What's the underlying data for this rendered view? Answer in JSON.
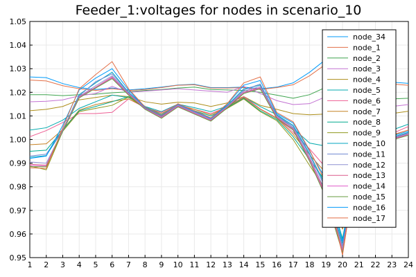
{
  "chart_data": {
    "type": "line",
    "title": "Feeder_1:voltages for nodes in scenario_10",
    "xlabel": "",
    "ylabel": "",
    "xlim": [
      1,
      24
    ],
    "ylim": [
      0.95,
      1.05
    ],
    "x": [
      1,
      2,
      3,
      4,
      5,
      6,
      7,
      8,
      9,
      10,
      11,
      12,
      13,
      14,
      15,
      16,
      17,
      18,
      19,
      20,
      21,
      22,
      23,
      24
    ],
    "xticks": [
      "1",
      "2",
      "3",
      "4",
      "5",
      "6",
      "7",
      "8",
      "9",
      "10",
      "11",
      "12",
      "13",
      "14",
      "15",
      "16",
      "17",
      "18",
      "19",
      "20",
      "21",
      "22",
      "23",
      "24"
    ],
    "yticks": [
      "0.95",
      "0.96",
      "0.97",
      "0.98",
      "0.99",
      "1.00",
      "1.01",
      "1.02",
      "1.03",
      "1.04",
      "1.05"
    ],
    "legend_position": "top-right",
    "grid": true,
    "series": [
      {
        "name": "node_34",
        "color": "#009AFA",
        "values": [
          1.0265,
          1.0262,
          1.0237,
          1.022,
          1.0212,
          1.0218,
          1.021,
          1.0215,
          1.0222,
          1.0231,
          1.0234,
          1.022,
          1.022,
          1.0222,
          1.0215,
          1.0222,
          1.024,
          1.0285,
          1.034,
          1.0278,
          1.0262,
          1.025,
          1.0243,
          1.0238
        ]
      },
      {
        "name": "node_1",
        "color": "#E36F47",
        "values": [
          1.0252,
          1.0248,
          1.0228,
          1.0215,
          1.0208,
          1.0215,
          1.0208,
          1.0212,
          1.022,
          1.023,
          1.0232,
          1.0218,
          1.0218,
          1.022,
          1.0212,
          1.022,
          1.0232,
          1.027,
          1.032,
          1.027,
          1.0255,
          1.0242,
          1.0235,
          1.023
        ]
      },
      {
        "name": "node_2",
        "color": "#3EA44E",
        "values": [
          1.019,
          1.019,
          1.0186,
          1.019,
          1.0192,
          1.0198,
          1.0202,
          1.0208,
          1.0212,
          1.0218,
          1.0222,
          1.0212,
          1.021,
          1.0208,
          1.02,
          1.0188,
          1.0175,
          1.019,
          1.0222,
          1.0192,
          1.0182,
          1.0175,
          1.0172,
          1.0175
        ]
      },
      {
        "name": "node_3",
        "color": "#C271D2",
        "values": [
          1.016,
          1.0162,
          1.0168,
          1.0185,
          1.0195,
          1.0225,
          1.02,
          1.0205,
          1.021,
          1.0215,
          1.021,
          1.0205,
          1.02,
          1.0225,
          1.0195,
          1.0165,
          1.0148,
          1.0152,
          1.0182,
          1.0155,
          1.0148,
          1.0142,
          1.014,
          1.0148
        ]
      },
      {
        "name": "node_4",
        "color": "#AC8D18",
        "values": [
          1.0122,
          1.0128,
          1.014,
          1.0168,
          1.0178,
          1.0188,
          1.0182,
          1.016,
          1.015,
          1.0158,
          1.0155,
          1.014,
          1.0155,
          1.0182,
          1.0145,
          1.0128,
          1.011,
          1.0105,
          1.0108,
          1.0098,
          1.01,
          1.0105,
          1.011,
          1.012
        ]
      },
      {
        "name": "node_5",
        "color": "#00A9AD",
        "values": [
          1.004,
          1.005,
          1.0082,
          1.0132,
          1.016,
          1.0188,
          1.0178,
          1.014,
          1.0118,
          1.015,
          1.0135,
          1.0118,
          1.0142,
          1.018,
          1.014,
          1.0105,
          1.0048,
          0.9985,
          0.9972,
          0.9958,
          0.998,
          1.001,
          1.004,
          1.0065
        ]
      },
      {
        "name": "node_6",
        "color": "#ED5E93",
        "values": [
          1.0012,
          1.0038,
          1.0072,
          1.011,
          1.011,
          1.0115,
          1.0172,
          1.0135,
          1.0115,
          1.0148,
          1.0128,
          1.011,
          1.0138,
          1.0182,
          1.013,
          1.0092,
          1.003,
          0.996,
          0.988,
          0.968,
          0.9945,
          0.999,
          1.0025,
          1.0055
        ]
      },
      {
        "name": "node_7",
        "color": "#C68125",
        "values": [
          0.9978,
          0.9982,
          1.0042,
          1.0125,
          1.0148,
          1.0162,
          1.0172,
          1.0138,
          1.011,
          1.0145,
          1.0128,
          1.0105,
          1.0138,
          1.0178,
          1.0128,
          1.009,
          1.0022,
          0.9935,
          0.9858,
          0.962,
          0.9945,
          0.9985,
          1.0018,
          1.004
        ]
      },
      {
        "name": "node_8",
        "color": "#00A98D",
        "values": [
          0.995,
          0.9955,
          1.004,
          1.0122,
          1.014,
          1.016,
          1.0182,
          1.0135,
          1.0105,
          1.0142,
          1.0122,
          1.01,
          1.0135,
          1.0175,
          1.0122,
          1.0085,
          1.0012,
          0.9915,
          0.982,
          0.958,
          0.9945,
          0.9982,
          1.001,
          1.0025
        ]
      },
      {
        "name": "node_9",
        "color": "#8E971D",
        "values": [
          0.9888,
          0.9872,
          1.0035,
          1.0118,
          1.0132,
          1.0145,
          1.018,
          1.0132,
          1.01,
          1.014,
          1.0118,
          1.009,
          1.0132,
          1.0172,
          1.0118,
          1.008,
          1.0,
          0.989,
          0.9785,
          0.954,
          0.994,
          0.998,
          1.0005,
          1.002
        ]
      },
      {
        "name": "node_10",
        "color": "#00A6C0",
        "values": [
          0.9925,
          0.9932,
          1.004,
          1.019,
          1.024,
          1.0285,
          1.02,
          1.014,
          1.0105,
          1.015,
          1.012,
          1.009,
          1.0145,
          1.0215,
          1.023,
          1.0105,
          1.006,
          0.994,
          0.98,
          0.956,
          0.995,
          0.999,
          1.001,
          1.003
        ]
      },
      {
        "name": "node_11",
        "color": "#6D87D1",
        "values": [
          0.993,
          0.9938,
          1.0042,
          1.0185,
          1.0245,
          1.0278,
          1.0198,
          1.0138,
          1.0102,
          1.0148,
          1.0118,
          1.0088,
          1.0142,
          1.021,
          1.0235,
          1.0102,
          1.0055,
          0.9935,
          0.979,
          0.955,
          0.9948,
          0.9988,
          1.0008,
          1.0028
        ]
      },
      {
        "name": "node_12",
        "color": "#8E8FD2",
        "values": [
          0.9905,
          0.99,
          1.0038,
          1.0182,
          1.0228,
          1.027,
          1.0195,
          1.0135,
          1.0098,
          1.0145,
          1.0115,
          1.0085,
          1.014,
          1.0205,
          1.0225,
          1.0098,
          1.005,
          0.9925,
          0.9775,
          0.954,
          0.9945,
          0.9985,
          1.0005,
          1.0025
        ]
      },
      {
        "name": "node_13",
        "color": "#DB5C8C",
        "values": [
          0.9895,
          0.9892,
          1.0036,
          1.018,
          1.0222,
          1.0265,
          1.0192,
          1.0132,
          1.0095,
          1.0142,
          1.0112,
          1.0082,
          1.0138,
          1.02,
          1.022,
          1.0095,
          1.0045,
          0.9918,
          0.9765,
          0.953,
          0.9942,
          0.9982,
          1.0002,
          1.0022
        ]
      },
      {
        "name": "node_14",
        "color": "#E05AC8",
        "values": [
          0.989,
          0.9888,
          1.0035,
          1.0178,
          1.022,
          1.0262,
          1.019,
          1.013,
          1.0092,
          1.014,
          1.011,
          1.008,
          1.0136,
          1.0198,
          1.0218,
          1.0092,
          1.0042,
          0.9912,
          0.9758,
          0.9525,
          0.994,
          0.998,
          1.0,
          1.002
        ]
      },
      {
        "name": "node_15",
        "color": "#669B3F",
        "values": [
          0.9885,
          0.9885,
          1.0034,
          1.0176,
          1.0218,
          1.0258,
          1.0188,
          1.0128,
          1.009,
          1.0138,
          1.0108,
          1.0078,
          1.0134,
          1.0195,
          1.0215,
          1.009,
          1.004,
          0.9908,
          0.9752,
          0.952,
          0.9938,
          0.9978,
          0.9998,
          1.0018
        ]
      },
      {
        "name": "node_16",
        "color": "#009AFA",
        "values": [
          0.992,
          0.993,
          1.006,
          1.021,
          1.026,
          1.03,
          1.021,
          1.0135,
          1.01,
          1.015,
          1.012,
          1.009,
          1.015,
          1.023,
          1.025,
          1.011,
          1.007,
          0.995,
          0.983,
          0.957,
          0.9955,
          0.9995,
          1.0015,
          1.0035
        ]
      },
      {
        "name": "node_17",
        "color": "#E36F47",
        "values": [
          0.988,
          0.9878,
          1.005,
          1.0215,
          1.0275,
          1.033,
          1.0215,
          1.0138,
          1.0102,
          1.0152,
          1.0122,
          1.0092,
          1.0152,
          1.024,
          1.0265,
          1.0115,
          1.0075,
          0.9955,
          0.9815,
          0.951,
          0.996,
          1.0,
          1.002,
          1.004
        ]
      }
    ]
  }
}
